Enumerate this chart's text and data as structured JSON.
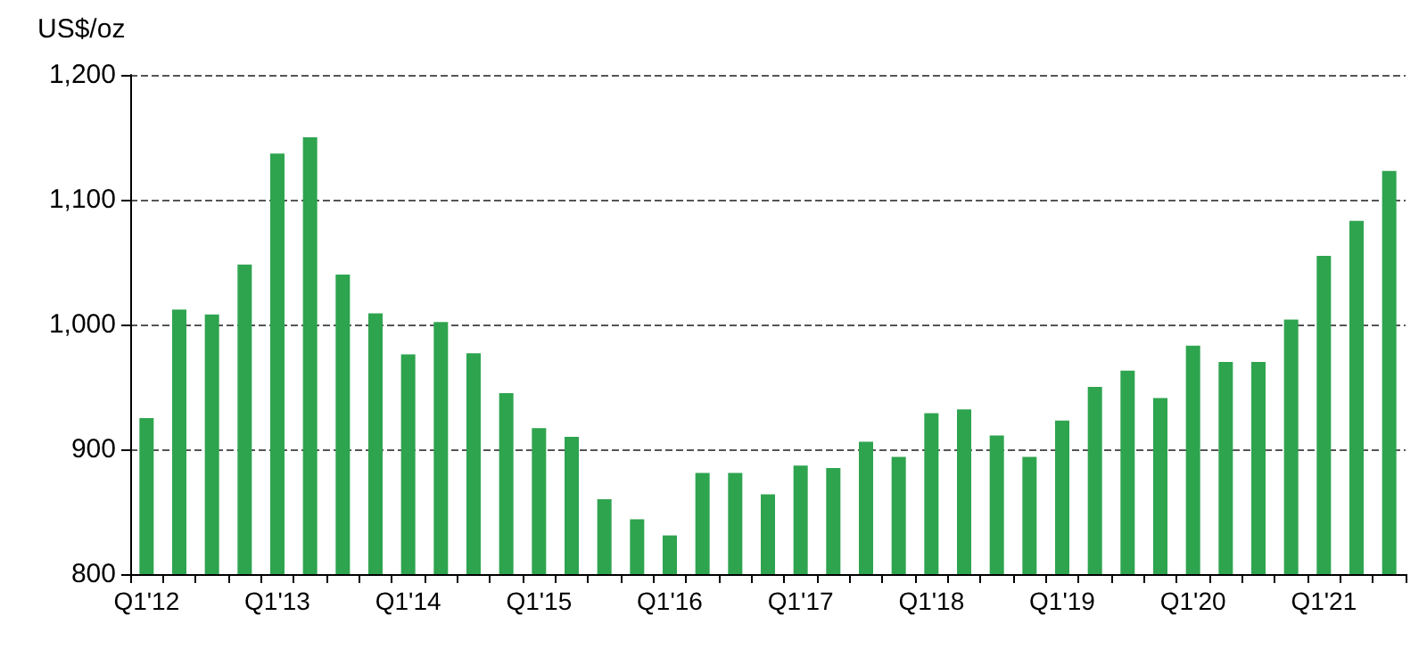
{
  "chart_data": {
    "type": "bar",
    "ylabel": "US$/oz",
    "categories": [
      "Q1'12",
      null,
      null,
      null,
      "Q1'13",
      null,
      null,
      null,
      "Q1'14",
      null,
      null,
      null,
      "Q1'15",
      null,
      null,
      null,
      "Q1'16",
      null,
      null,
      null,
      "Q1'17",
      null,
      null,
      null,
      "Q1'18",
      null,
      null,
      null,
      "Q1'19",
      null,
      null,
      null,
      "Q1'20",
      null,
      null,
      null,
      "Q1'21",
      null,
      null
    ],
    "values": [
      925,
      1012,
      1008,
      1048,
      1137,
      1150,
      1040,
      1009,
      976,
      1002,
      977,
      945,
      917,
      910,
      860,
      844,
      831,
      881,
      881,
      864,
      887,
      885,
      906,
      894,
      929,
      932,
      911,
      894,
      923,
      950,
      963,
      941,
      983,
      970,
      970,
      1004,
      1055,
      1083,
      1123
    ],
    "color": "#2ea44f",
    "ylim": [
      800,
      1200
    ],
    "yticks": [
      {
        "value": 800,
        "label": "800"
      },
      {
        "value": 900,
        "label": "900"
      },
      {
        "value": 1000,
        "label": "1,000"
      },
      {
        "value": 1100,
        "label": "1,100"
      },
      {
        "value": 1200,
        "label": "1,200"
      }
    ],
    "grid": "y"
  }
}
